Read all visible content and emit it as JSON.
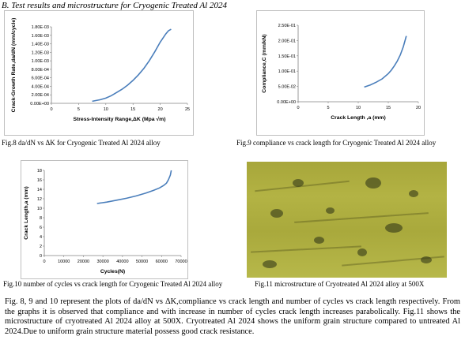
{
  "section_heading": "B. Test results and microstructure for Cryogenic Treated Al 2024",
  "charts": [
    {
      "id": "fig8",
      "type": "line",
      "xlabel": "Stress-Intensity Range,ΔK (Mpa √m)",
      "ylabel": "Crack-Growth Rate,da/dN (mm/cycle)",
      "x_ticks": [
        "0",
        "5",
        "10",
        "15",
        "20",
        "25"
      ],
      "y_ticks": [
        "0.00E+00",
        "2.00E-04",
        "4.00E-04",
        "6.00E-04",
        "8.00E-04",
        "1.00E-03",
        "1.20E-03",
        "1.40E-03",
        "1.60E-03",
        "1.80E-03"
      ],
      "xlim": [
        0,
        25
      ],
      "ylim": [
        0,
        0.0019
      ],
      "x": [
        7.5,
        9,
        10,
        11,
        12,
        13,
        14,
        15,
        16,
        17,
        18,
        19,
        20,
        21,
        21.5,
        22
      ],
      "y": [
        5e-05,
        9e-05,
        0.00013,
        0.00019,
        0.00027,
        0.00035,
        0.00045,
        0.00057,
        0.00071,
        0.00087,
        0.00106,
        0.00128,
        0.00152,
        0.00172,
        0.0018,
        0.00184
      ],
      "color": "#4a7ebb"
    },
    {
      "id": "fig9",
      "type": "line",
      "xlabel": "Crack Length ,a (mm)",
      "ylabel": "Compliance,C (mm/kN)",
      "x_ticks": [
        "0",
        "5",
        "10",
        "15",
        "20"
      ],
      "y_ticks": [
        "0.00E+00",
        "5.00E-02",
        "1.00E-01",
        "1.50E-01",
        "2.00E-01",
        "2.50E-01"
      ],
      "xlim": [
        0,
        20
      ],
      "ylim": [
        0,
        0.25
      ],
      "x": [
        11,
        12,
        13,
        14,
        15,
        15.5,
        16,
        16.5,
        17,
        17.5,
        18
      ],
      "y": [
        0.048,
        0.055,
        0.064,
        0.075,
        0.092,
        0.103,
        0.117,
        0.133,
        0.153,
        0.18,
        0.215
      ],
      "color": "#4a7ebb"
    },
    {
      "id": "fig10",
      "type": "line",
      "xlabel": "Cycles(N)",
      "ylabel": "Crack Length,a (mm)",
      "x_ticks": [
        "0",
        "10000",
        "20000",
        "30000",
        "40000",
        "50000",
        "60000",
        "70000"
      ],
      "y_ticks": [
        "0",
        "2",
        "4",
        "6",
        "8",
        "10",
        "12",
        "14",
        "16",
        "18"
      ],
      "xlim": [
        0,
        70000
      ],
      "ylim": [
        0,
        18
      ],
      "x": [
        27000,
        32000,
        37000,
        42000,
        47000,
        52000,
        56000,
        59000,
        61000,
        62500,
        63500,
        64500,
        65000
      ],
      "y": [
        11.0,
        11.3,
        11.7,
        12.1,
        12.6,
        13.2,
        13.8,
        14.3,
        14.8,
        15.3,
        16.0,
        17.0,
        18.0
      ],
      "color": "#4a7ebb"
    }
  ],
  "captions": {
    "fig8": "Fig.8 da/dN vs ΔK for Cryogenic Treated Al 2024 alloy",
    "fig9": "Fig.9 compliance vs crack length for Cryogenic Treated Al 2024 alloy",
    "fig10": "Fig.10 number of cycles vs crack length for Cryogenic Treated Al 2024 alloy",
    "fig11": "Fig.11 microstructure of Cryotreated Al 2024 alloy at 500X"
  },
  "paragraph": "Fig. 8, 9 and 10 represent the plots of da/dN vs ΔK,compliance vs crack length and number of cycles vs crack length respectively. From the graphs it is observed that compliance and with increase in number of cycles crack length increases parabolically. Fig.11 shows the microstructure of cryotreated Al 2024 alloy at 500X. Cryotreated Al 2024 shows the uniform grain structure compared to untreated Al 2024.Due to uniform grain structure material possess good crack resistance.",
  "micrograph_description": "microstructure image of Cryotreated Al 2024 alloy at 500X",
  "colors": {
    "series": "#4a7ebb",
    "micro_base": "#abab3e"
  }
}
